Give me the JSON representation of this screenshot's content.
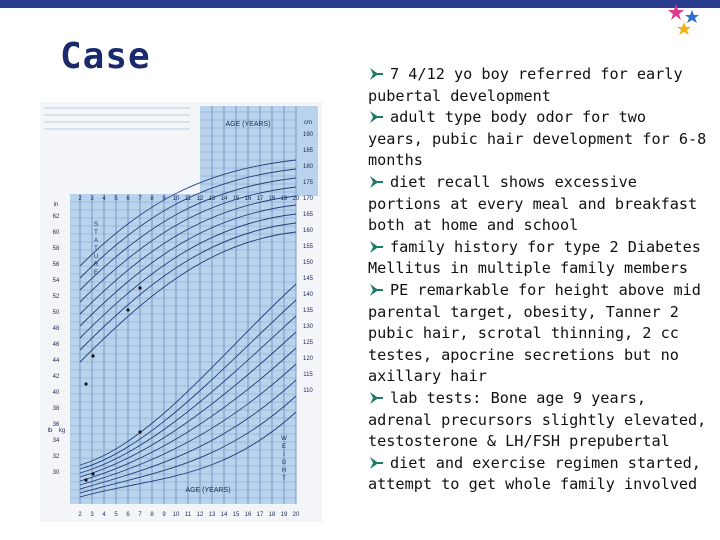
{
  "slide": {
    "title": "Case",
    "bullets": [
      "7 4/12 yo boy referred for early pubertal development",
      "adult type body odor for two years, pubic hair development for 6-8 months",
      "diet recall shows excessive portions at every meal and breakfast both at home and school",
      "family history for type 2 Diabetes Mellitus in multiple family members",
      "PE remarkable for height above mid parental target, obesity, Tanner 2 pubic hair, scrotal thinning, 2 cc testes, apocrine secretions but no axillary hair",
      "lab tests: Bone age 9 years, adrenal precursors slightly elevated, testosterone & LH/FSH prepubertal",
      "diet and exercise regimen started, attempt to get whole family involved"
    ]
  },
  "growth_chart": {
    "age_label_top": "AGE (YEARS)",
    "age_label_bottom": "AGE (YEARS)",
    "stature_label": "STATURE",
    "weight_label": "WEIGHT",
    "unit_cm": "cm",
    "unit_in": "in",
    "unit_kg": "kg",
    "unit_lb": "lb",
    "ages": [
      "2",
      "3",
      "4",
      "5",
      "6",
      "7",
      "8",
      "9",
      "10",
      "11",
      "12",
      "13",
      "14",
      "15",
      "16",
      "17",
      "18",
      "19",
      "20"
    ],
    "left_in_ticks": [
      "62",
      "60",
      "58",
      "56",
      "54",
      "52",
      "50",
      "48",
      "46",
      "44",
      "42",
      "40",
      "38",
      "36",
      "34",
      "32",
      "30"
    ],
    "right_cm_ticks": [
      "190",
      "185",
      "180",
      "175",
      "170",
      "165",
      "160",
      "155",
      "150",
      "145",
      "140",
      "135",
      "130",
      "125",
      "120",
      "115",
      "110"
    ],
    "colors": {
      "bg": "#b9d3ec",
      "grid": "#6f93c4",
      "curve": "#1f3f7a",
      "point": "#111111"
    }
  },
  "colors": {
    "title": "#1a2a6c",
    "top_bar": "#2a3d8f"
  }
}
